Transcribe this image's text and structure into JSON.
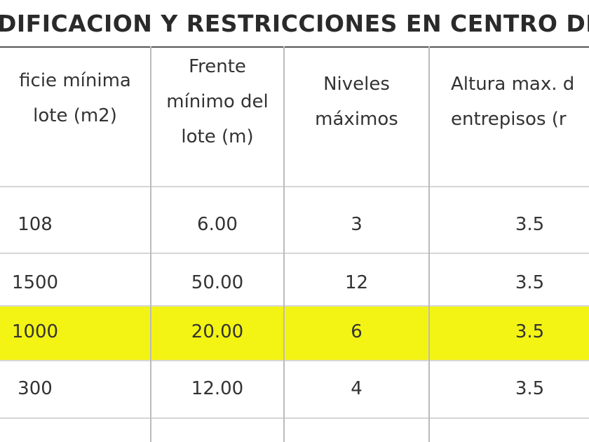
{
  "title": "DIFICACION Y RESTRICCIONES EN CENTRO DE",
  "table": {
    "header": [
      [
        "ficie mínima",
        "lote (m2)"
      ],
      [
        "Frente",
        "mínimo del",
        "lote (m)"
      ],
      [
        "Niveles",
        "máximos"
      ],
      [
        "Altura max. d",
        "entrepisos (r"
      ]
    ],
    "rows": [
      [
        "108",
        "6.00",
        "3",
        "3.5"
      ],
      [
        "1500",
        "50.00",
        "12",
        "3.5"
      ],
      [
        "1000",
        "20.00",
        "6",
        "3.5"
      ],
      [
        "300",
        "12.00",
        "4",
        "3.5"
      ]
    ]
  }
}
